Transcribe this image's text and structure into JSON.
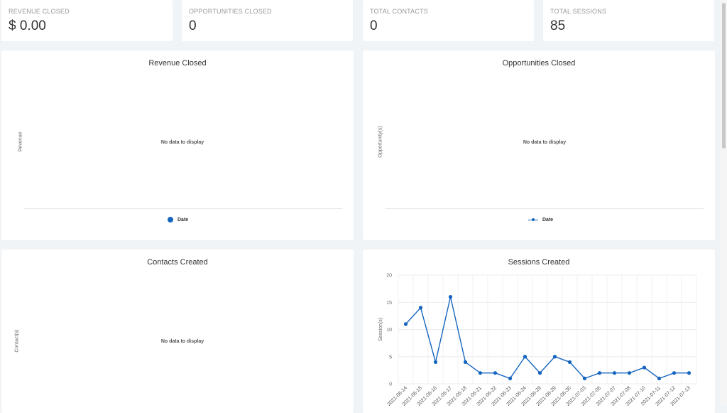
{
  "stats": [
    {
      "label": "REVENUE CLOSED",
      "value": "$ 0.00"
    },
    {
      "label": "OPPORTUNITIES CLOSED",
      "value": "0"
    },
    {
      "label": "TOTAL CONTACTS",
      "value": "0"
    },
    {
      "label": "TOTAL SESSIONS",
      "value": "85"
    }
  ],
  "revenue_panel": {
    "title": "Revenue Closed",
    "ylabel": "Revenue",
    "nodata": "No data to display",
    "legend": "Date"
  },
  "opportunities_panel": {
    "title": "Opportunities Closed",
    "ylabel": "Opportunity(s)",
    "nodata": "No data to display",
    "legend": "Date"
  },
  "contacts_panel": {
    "title": "Contacts Created",
    "ylabel": "Contact(s)",
    "nodata": "No data to display"
  },
  "sessions_panel": {
    "title": "Sessions Created"
  },
  "colors": {
    "series": "#1565c0",
    "background": "#f0f4f7",
    "card": "#ffffff"
  },
  "chart_data": {
    "type": "line",
    "title": "Sessions Created",
    "xlabel": "",
    "ylabel": "Session(s)",
    "ylim": [
      0,
      20
    ],
    "yticks": [
      0,
      5,
      10,
      15,
      20
    ],
    "grid": true,
    "x": [
      "2021-06-14",
      "2021-06-15",
      "2021-06-16",
      "2021-06-17",
      "2021-06-18",
      "2021-06-21",
      "2021-06-22",
      "2021-06-23",
      "2021-06-24",
      "2021-06-28",
      "2021-06-29",
      "2021-06-30",
      "2021-07-03",
      "2021-07-06",
      "2021-07-07",
      "2021-07-08",
      "2021-07-10",
      "2021-07-11",
      "2021-07-12",
      "2021-07-13"
    ],
    "series": [
      {
        "values": [
          11,
          14,
          4,
          16,
          4,
          2,
          2,
          1,
          5,
          2,
          5,
          4,
          1,
          2,
          2,
          2,
          3,
          1,
          2,
          2
        ]
      }
    ]
  }
}
